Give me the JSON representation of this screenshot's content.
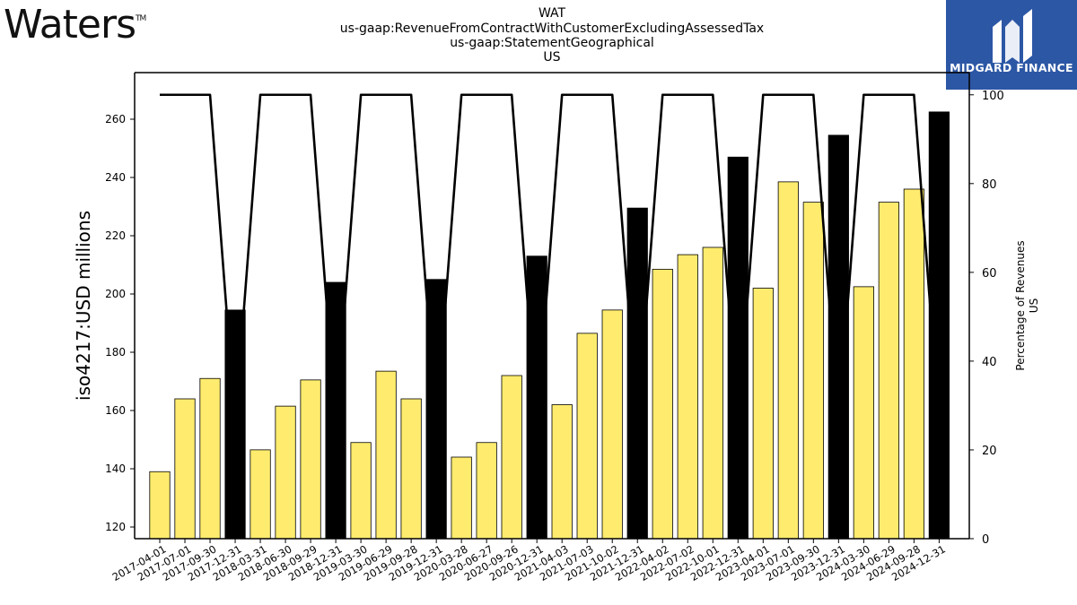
{
  "header": {
    "title_lines": [
      "WAT",
      "us-gaap:RevenueFromContractWithCustomerExcludingAssessedTax",
      "us-gaap:StatementGeographical",
      "US"
    ],
    "logo_left": "Waters",
    "logo_left_mark": "TM",
    "logo_right": "MIDGARD FINANCE"
  },
  "chart_data": {
    "type": "bar",
    "ylabel": "iso4217:USD  millions",
    "y2label_lines": [
      "Percentage of Revenues",
      "US"
    ],
    "ylim": [
      116,
      276
    ],
    "y_ticks": [
      120,
      140,
      160,
      180,
      200,
      220,
      240,
      260
    ],
    "y2lim": [
      0,
      105
    ],
    "y2_ticks": [
      0,
      20,
      40,
      60,
      80,
      100
    ],
    "colors": {
      "quarter_bar": "#ffec6e",
      "annual_bar": "#000000",
      "line": "#000000"
    },
    "categories": [
      "2017-04-01",
      "2017-07-01",
      "2017-09-30",
      "2017-12-31",
      "2018-03-31",
      "2018-06-30",
      "2018-09-29",
      "2018-12-31",
      "2019-03-30",
      "2019-06-29",
      "2019-09-28",
      "2019-12-31",
      "2020-03-28",
      "2020-06-27",
      "2020-09-26",
      "2020-12-31",
      "2021-04-03",
      "2021-07-03",
      "2021-10-02",
      "2021-12-31",
      "2022-04-02",
      "2022-07-02",
      "2022-10-01",
      "2022-12-31",
      "2023-04-01",
      "2023-07-01",
      "2023-09-30",
      "2023-12-31",
      "2024-03-30",
      "2024-06-29",
      "2024-09-28",
      "2024-12-31"
    ],
    "series": [
      {
        "kind": "bar",
        "values": [
          139,
          164,
          171,
          194.5,
          146.5,
          161.5,
          170.5,
          204,
          149,
          173.5,
          164,
          205,
          144,
          149,
          172,
          213,
          162,
          186.5,
          194.5,
          229.5,
          208.5,
          213.5,
          216,
          247,
          202,
          238.5,
          231.5,
          254.5,
          202.5,
          231.5,
          236,
          262.5
        ],
        "annual": [
          false,
          false,
          false,
          true,
          false,
          false,
          false,
          true,
          false,
          false,
          false,
          true,
          false,
          false,
          false,
          true,
          false,
          false,
          false,
          true,
          false,
          false,
          false,
          true,
          false,
          false,
          false,
          true,
          false,
          false,
          false,
          true
        ]
      },
      {
        "kind": "line",
        "axis": "y2",
        "values": [
          100,
          100,
          100,
          26,
          100,
          100,
          100,
          26,
          100,
          100,
          100,
          26,
          100,
          100,
          100,
          26,
          100,
          100,
          100,
          26,
          100,
          100,
          100,
          26,
          100,
          100,
          100,
          26,
          100,
          100,
          100,
          26
        ]
      }
    ]
  }
}
